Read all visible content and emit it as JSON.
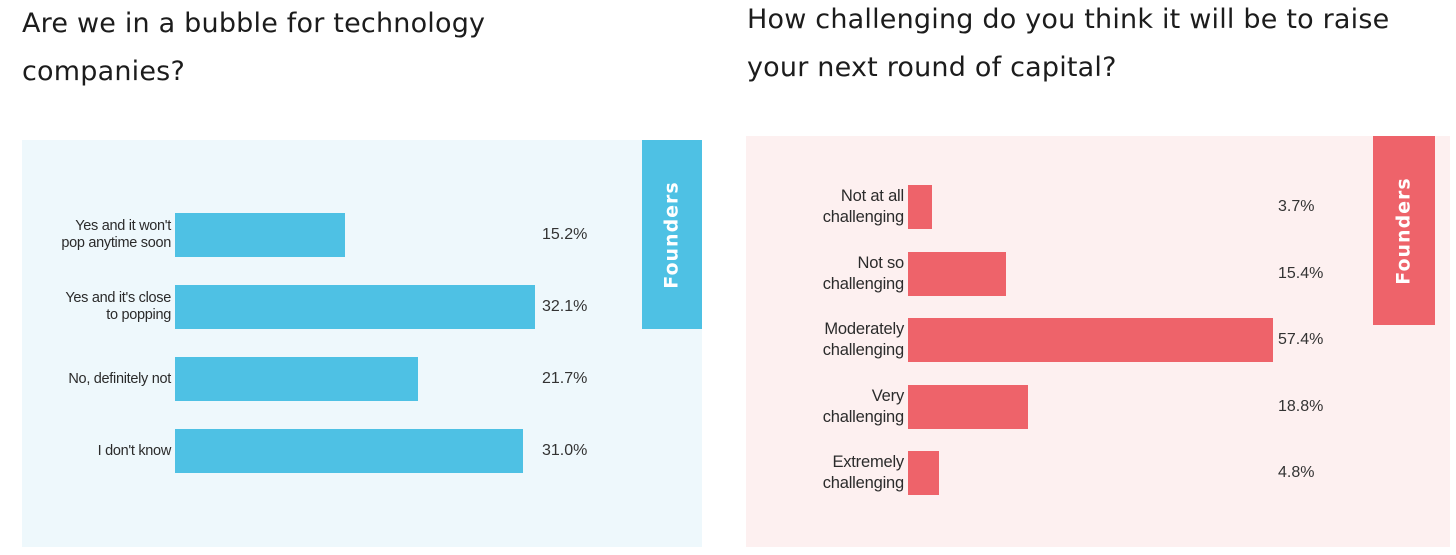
{
  "left_chart": {
    "title": "Are we in a bubble for technology companies?",
    "tab_label": "Founders",
    "colors": {
      "background": "#eef8fc",
      "bar": "#4ec1e4",
      "tab": "#4ec1e4"
    }
  },
  "right_chart": {
    "title": "How challenging do you think it will be to raise your next round of capital?",
    "tab_label": "Founders",
    "colors": {
      "background": "#fdf0f0",
      "bar": "#ee636a",
      "tab": "#ee636a"
    }
  },
  "chart_data": [
    {
      "type": "bar",
      "orientation": "horizontal",
      "title": "Are we in a bubble for technology companies?",
      "legend": "Founders",
      "categories": [
        "Yes and it won't\npop anytime soon",
        "Yes and it's close\nto popping",
        "No, definitely not",
        "I don't know"
      ],
      "values": [
        15.2,
        32.1,
        21.7,
        31.0
      ],
      "value_labels": [
        "15.2%",
        "32.1%",
        "21.7%",
        "31.0%"
      ],
      "xlim": [
        0,
        32.1
      ],
      "grid": false
    },
    {
      "type": "bar",
      "orientation": "horizontal",
      "title": "How challenging do you think it will be to raise your next round of capital?",
      "legend": "Founders",
      "categories": [
        "Not at all\nchallenging",
        "Not so\nchallenging",
        "Moderately\nchallenging",
        "Very\nchallenging",
        "Extremely\nchallenging"
      ],
      "values": [
        3.7,
        15.4,
        57.4,
        18.8,
        4.8
      ],
      "value_labels": [
        "3.7%",
        "15.4%",
        "57.4%",
        "18.8%",
        "4.8%"
      ],
      "xlim": [
        0,
        57.4
      ],
      "grid": false
    }
  ]
}
